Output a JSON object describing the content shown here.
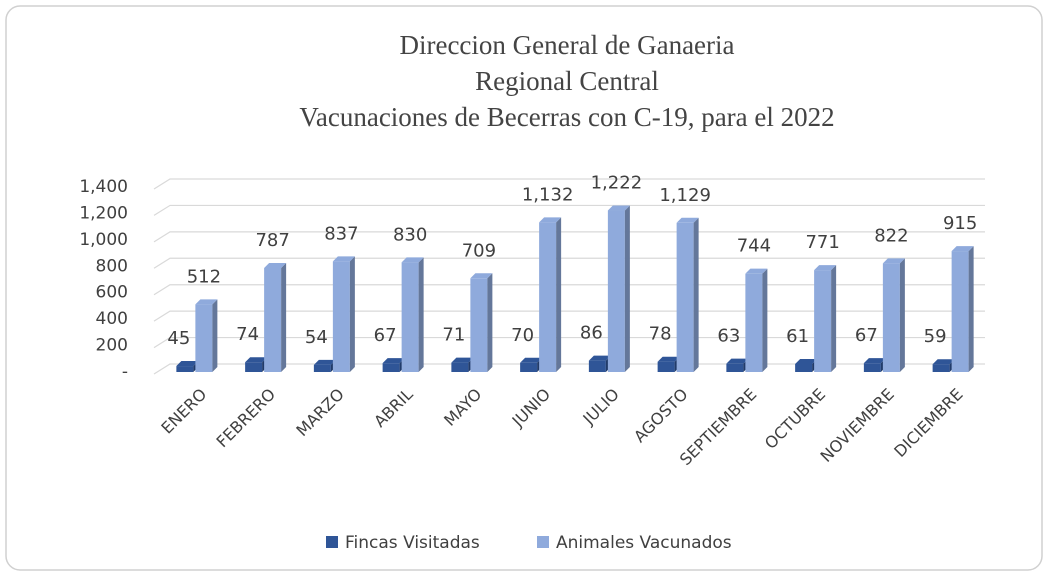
{
  "chart_data": {
    "type": "bar3d",
    "title": [
      "Direccion General de Ganaeria",
      "Regional Central",
      "Vacunaciones de Becerras con C-19, para el 2022"
    ],
    "categories": [
      "ENERO",
      "FEBRERO",
      "MARZO",
      "ABRIL",
      "MAYO",
      "JUNIO",
      "JULIO",
      "AGOSTO",
      "SEPTIEMBRE",
      "OCTUBRE",
      "NOVIEMBRE",
      "DICIEMBRE"
    ],
    "series": [
      {
        "name": "Fincas Visitadas",
        "color": "#2f5597",
        "values": [
          45,
          74,
          54,
          67,
          71,
          70,
          86,
          78,
          63,
          61,
          67,
          59
        ]
      },
      {
        "name": "Animales Vacunados",
        "color": "#8faadc",
        "values": [
          512,
          787,
          837,
          830,
          709,
          1132,
          1222,
          1129,
          744,
          771,
          822,
          915
        ],
        "value_labels": [
          "512",
          "787",
          "837",
          "830",
          "709",
          "1,132",
          "1,222",
          "1,129",
          "744",
          "771",
          "822",
          "915"
        ]
      }
    ],
    "ylim": [
      0,
      1400
    ],
    "yticks": [
      {
        "value": 0,
        "label": "-"
      },
      200,
      400,
      600,
      800,
      {
        "value": 1000,
        "label": "1,000"
      },
      {
        "value": 1200,
        "label": "1,200"
      },
      {
        "value": 1400,
        "label": "1,400"
      }
    ],
    "grid": true,
    "legend": "bottom"
  }
}
